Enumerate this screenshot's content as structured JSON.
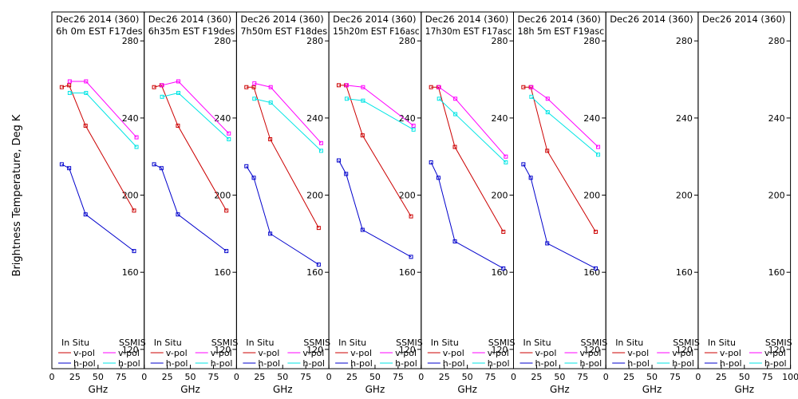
{
  "figure": {
    "ylabel": "Brightness Temperature, Deg K",
    "xlabel": "GHz",
    "legend": {
      "insitu_title": "In Situ",
      "ssmis_title": "SSMIS",
      "vpol_label": "v-pol",
      "hpol_label": "h-pol"
    },
    "colors": {
      "insitu_v": "#cc0000",
      "insitu_h": "#0000cc",
      "ssmis_v": "#ff00ff",
      "ssmis_h": "#00e5e5"
    }
  },
  "chart_data": [
    {
      "type": "line",
      "title": "Dec26 2014 (360)",
      "subtitle": "6h 0m EST F17des",
      "xlim": [
        0,
        100
      ],
      "ylim": [
        110,
        295
      ],
      "xticks": [
        0,
        25,
        50,
        75
      ],
      "yticks": [
        120,
        160,
        200,
        240,
        280
      ],
      "x": [
        10.7,
        18.7,
        36.5,
        89
      ],
      "series": [
        {
          "name": "In Situ v-pol",
          "values": [
            256,
            257,
            236,
            192
          ]
        },
        {
          "name": "In Situ h-pol",
          "values": [
            216,
            214,
            190,
            171
          ]
        },
        {
          "name": "SSMIS v-pol",
          "x": [
            19.35,
            37,
            91.655
          ],
          "values": [
            259,
            259,
            230
          ]
        },
        {
          "name": "SSMIS h-pol",
          "x": [
            19.35,
            37,
            91.655
          ],
          "values": [
            253,
            253,
            225
          ]
        }
      ]
    },
    {
      "type": "line",
      "title": "Dec26 2014 (360)",
      "subtitle": "6h35m EST F19des",
      "xlim": [
        0,
        100
      ],
      "ylim": [
        110,
        295
      ],
      "xticks": [
        0,
        25,
        50,
        75
      ],
      "yticks": [
        120,
        160,
        200,
        240,
        280
      ],
      "x": [
        10.7,
        18.7,
        36.5,
        89
      ],
      "series": [
        {
          "name": "In Situ v-pol",
          "values": [
            256,
            257,
            236,
            192
          ]
        },
        {
          "name": "In Situ h-pol",
          "values": [
            216,
            214,
            190,
            171
          ]
        },
        {
          "name": "SSMIS v-pol",
          "x": [
            19.35,
            37,
            91.655
          ],
          "values": [
            257,
            259,
            232
          ]
        },
        {
          "name": "SSMIS h-pol",
          "x": [
            19.35,
            37,
            91.655
          ],
          "values": [
            251,
            253,
            229
          ]
        }
      ]
    },
    {
      "type": "line",
      "title": "Dec26 2014 (360)",
      "subtitle": "7h50m EST F18des",
      "xlim": [
        0,
        100
      ],
      "ylim": [
        110,
        295
      ],
      "xticks": [
        0,
        25,
        50,
        75
      ],
      "yticks": [
        120,
        160,
        200,
        240,
        280
      ],
      "x": [
        10.7,
        18.7,
        36.5,
        89
      ],
      "series": [
        {
          "name": "In Situ v-pol",
          "values": [
            256,
            256,
            229,
            183
          ]
        },
        {
          "name": "In Situ h-pol",
          "values": [
            215,
            209,
            180,
            164
          ]
        },
        {
          "name": "SSMIS v-pol",
          "x": [
            19.35,
            37,
            91.655
          ],
          "values": [
            258,
            256,
            227
          ]
        },
        {
          "name": "SSMIS h-pol",
          "x": [
            19.35,
            37,
            91.655
          ],
          "values": [
            250,
            248,
            223
          ]
        }
      ]
    },
    {
      "type": "line",
      "title": "Dec26 2014 (360)",
      "subtitle": "15h20m EST F16asc",
      "xlim": [
        0,
        100
      ],
      "ylim": [
        110,
        295
      ],
      "xticks": [
        0,
        25,
        50,
        75
      ],
      "yticks": [
        120,
        160,
        200,
        240,
        280
      ],
      "x": [
        10.7,
        18.7,
        36.5,
        89
      ],
      "series": [
        {
          "name": "In Situ v-pol",
          "values": [
            257,
            257,
            231,
            189
          ]
        },
        {
          "name": "In Situ h-pol",
          "values": [
            218,
            211,
            182,
            168
          ]
        },
        {
          "name": "SSMIS v-pol",
          "x": [
            19.35,
            37,
            91.655
          ],
          "values": [
            257,
            256,
            236
          ]
        },
        {
          "name": "SSMIS h-pol",
          "x": [
            19.35,
            37,
            91.655
          ],
          "values": [
            250,
            249,
            234
          ]
        }
      ]
    },
    {
      "type": "line",
      "title": "Dec26 2014 (360)",
      "subtitle": "17h30m EST F17asc",
      "xlim": [
        0,
        100
      ],
      "ylim": [
        110,
        295
      ],
      "xticks": [
        0,
        25,
        50,
        75
      ],
      "yticks": [
        120,
        160,
        200,
        240,
        280
      ],
      "x": [
        10.7,
        18.7,
        36.5,
        89
      ],
      "series": [
        {
          "name": "In Situ v-pol",
          "values": [
            256,
            256,
            225,
            181
          ]
        },
        {
          "name": "In Situ h-pol",
          "values": [
            217,
            209,
            176,
            162
          ]
        },
        {
          "name": "SSMIS v-pol",
          "x": [
            19.35,
            37,
            91.655
          ],
          "values": [
            256,
            250,
            220
          ]
        },
        {
          "name": "SSMIS h-pol",
          "x": [
            19.35,
            37,
            91.655
          ],
          "values": [
            250,
            242,
            217
          ]
        }
      ]
    },
    {
      "type": "line",
      "title": "Dec26 2014 (360)",
      "subtitle": "18h 5m EST F19asc",
      "xlim": [
        0,
        100
      ],
      "ylim": [
        110,
        295
      ],
      "xticks": [
        0,
        25,
        50,
        75
      ],
      "yticks": [
        120,
        160,
        200,
        240,
        280
      ],
      "x": [
        10.7,
        18.7,
        36.5,
        89
      ],
      "series": [
        {
          "name": "In Situ v-pol",
          "values": [
            256,
            256,
            223,
            181
          ]
        },
        {
          "name": "In Situ h-pol",
          "values": [
            216,
            209,
            175,
            162
          ]
        },
        {
          "name": "SSMIS v-pol",
          "x": [
            19.35,
            37,
            91.655
          ],
          "values": [
            256,
            250,
            225
          ]
        },
        {
          "name": "SSMIS h-pol",
          "x": [
            19.35,
            37,
            91.655
          ],
          "values": [
            251,
            243,
            221
          ]
        }
      ]
    },
    {
      "type": "line",
      "title": "Dec26 2014 (360)",
      "subtitle": "",
      "xlim": [
        0,
        100
      ],
      "ylim": [
        110,
        295
      ],
      "xticks": [
        0,
        25,
        50,
        75
      ],
      "yticks": [
        120,
        160,
        200,
        240,
        280
      ],
      "x": [],
      "series": []
    },
    {
      "type": "line",
      "title": "Dec26 2014 (360)",
      "subtitle": "",
      "xlim": [
        0,
        100
      ],
      "ylim": [
        110,
        295
      ],
      "xticks": [
        0,
        25,
        50,
        75,
        100
      ],
      "yticks": [
        120,
        160,
        200,
        240,
        280
      ],
      "x": [],
      "series": []
    }
  ]
}
